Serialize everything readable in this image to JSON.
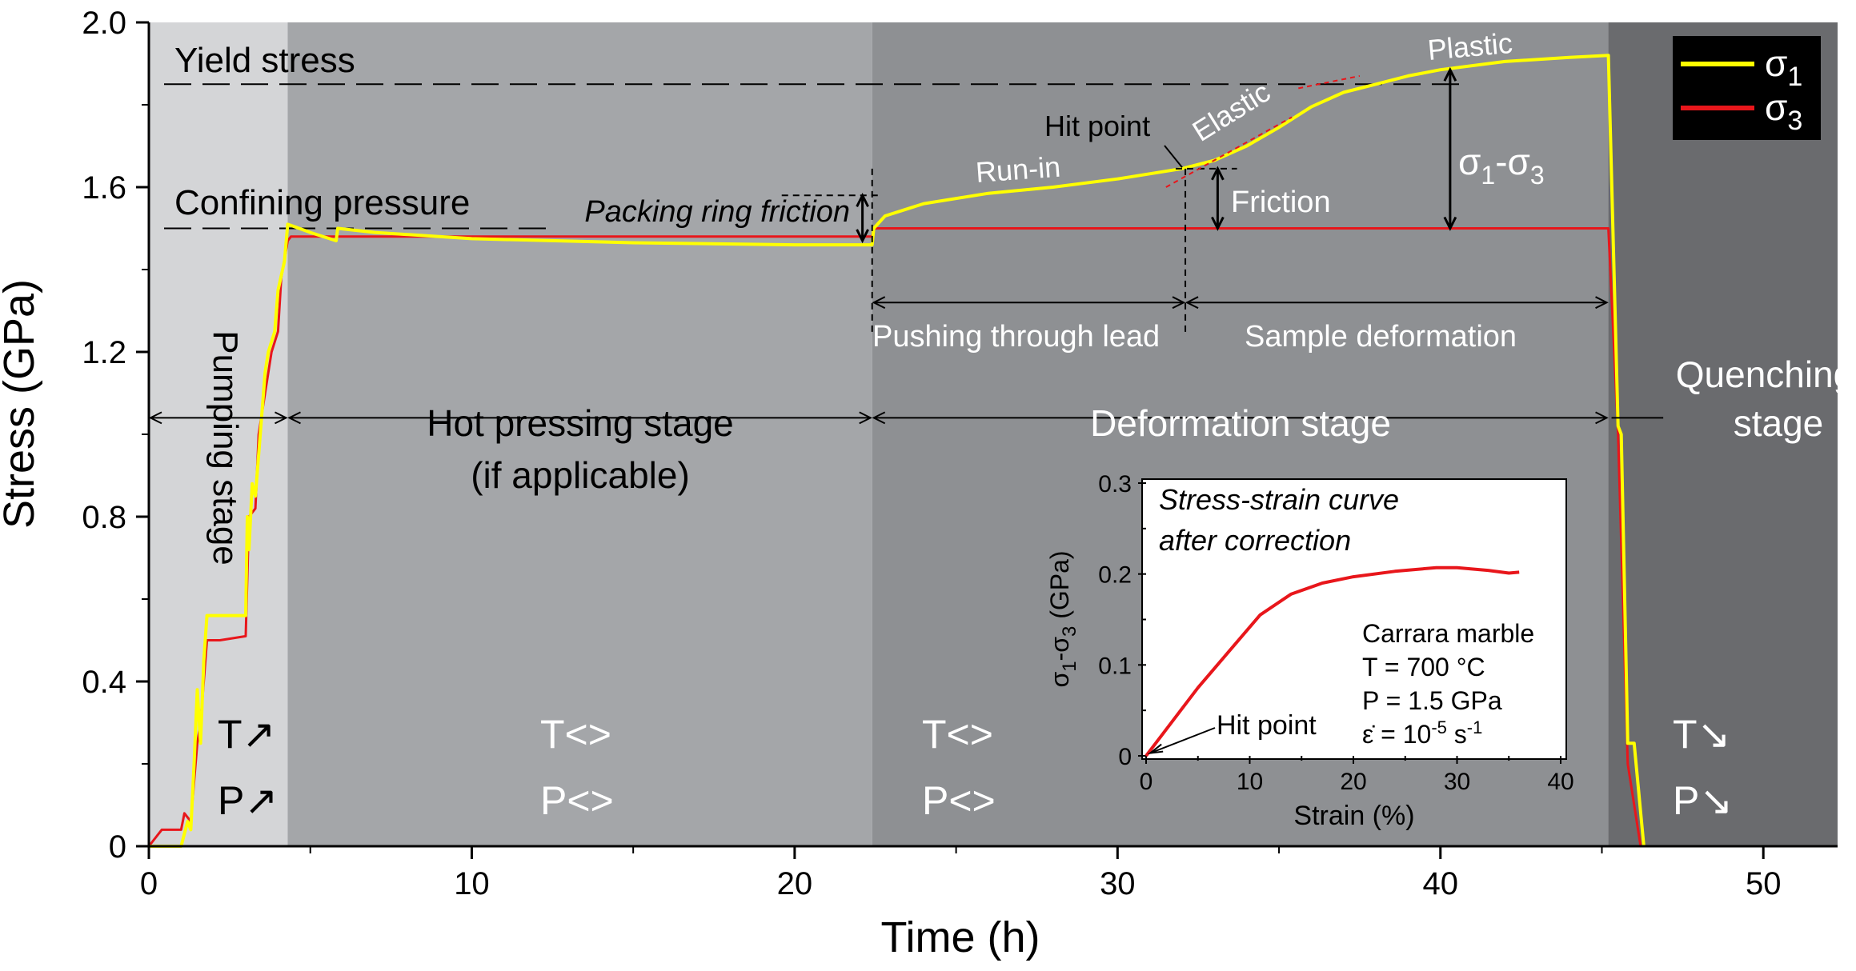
{
  "chart_data": [
    {
      "type": "line",
      "xlabel": "Time (h)",
      "ylabel": "Stress (GPa)",
      "xlim": [
        0,
        52.3
      ],
      "ylim": [
        0,
        2.0
      ],
      "x_ticks": [
        "0",
        "10",
        "20",
        "30",
        "40",
        "50"
      ],
      "y_ticks": [
        "0",
        "0.4",
        "0.8",
        "1.2",
        "1.6",
        "2.0"
      ],
      "legend": {
        "placement": "top-right",
        "entries": [
          {
            "name": "σ1",
            "base": "σ",
            "sub": "1",
            "color": "#ffff00"
          },
          {
            "name": "σ3",
            "base": "σ",
            "sub": "3",
            "color": "#e8161b"
          }
        ]
      },
      "stages": [
        {
          "name": "Pumping stage",
          "x_start": 0,
          "x_end": 4.3,
          "color": "#d4d5d7",
          "tp": [
            "T↗",
            "P↗"
          ]
        },
        {
          "name": "Hot pressing stage",
          "x_start": 4.3,
          "x_end": 22.4,
          "color": "#a4a6a9",
          "tp": [
            "T<>",
            "P<>"
          ]
        },
        {
          "name": "Deformation stage",
          "x_start": 22.4,
          "x_end": 45.2,
          "color": "#8e9093",
          "tp": [
            "T<>",
            "P<>"
          ]
        },
        {
          "name": "Quenching stage",
          "x_start": 45.2,
          "x_end": 52.3,
          "color": "#6a6b6e",
          "tp": [
            "T↘",
            "P↘"
          ]
        }
      ],
      "series": [
        {
          "name": "σ1",
          "color": "#ffff00",
          "points": [
            [
              0,
              0
            ],
            [
              1.0,
              0
            ],
            [
              1.2,
              0.06
            ],
            [
              1.3,
              0.04
            ],
            [
              1.4,
              0.2
            ],
            [
              1.5,
              0.38
            ],
            [
              1.6,
              0.25
            ],
            [
              1.7,
              0.45
            ],
            [
              1.8,
              0.56
            ],
            [
              2.2,
              0.56
            ],
            [
              3.0,
              0.56
            ],
            [
              3.05,
              0.8
            ],
            [
              3.1,
              0.72
            ],
            [
              3.2,
              0.88
            ],
            [
              3.3,
              0.85
            ],
            [
              3.5,
              1.05
            ],
            [
              3.6,
              1.15
            ],
            [
              3.7,
              1.2
            ],
            [
              3.9,
              1.25
            ],
            [
              4.0,
              1.35
            ],
            [
              4.2,
              1.42
            ],
            [
              4.3,
              1.51
            ],
            [
              5.0,
              1.49
            ],
            [
              5.8,
              1.47
            ],
            [
              5.85,
              1.5
            ],
            [
              7,
              1.49
            ],
            [
              10,
              1.475
            ],
            [
              15,
              1.465
            ],
            [
              20,
              1.46
            ],
            [
              22.4,
              1.46
            ],
            [
              22.45,
              1.5
            ],
            [
              22.8,
              1.53
            ],
            [
              24,
              1.56
            ],
            [
              26,
              1.585
            ],
            [
              28,
              1.6
            ],
            [
              30,
              1.62
            ],
            [
              32,
              1.645
            ],
            [
              33,
              1.665
            ],
            [
              34,
              1.7
            ],
            [
              35,
              1.745
            ],
            [
              36,
              1.795
            ],
            [
              37,
              1.83
            ],
            [
              38,
              1.85
            ],
            [
              39,
              1.87
            ],
            [
              40,
              1.885
            ],
            [
              42,
              1.905
            ],
            [
              44,
              1.915
            ],
            [
              45.2,
              1.92
            ],
            [
              45.5,
              1.02
            ],
            [
              45.6,
              1.0
            ],
            [
              45.8,
              0.25
            ],
            [
              46.0,
              0.25
            ],
            [
              46.3,
              0.0
            ]
          ]
        },
        {
          "name": "σ3",
          "color": "#e8161b",
          "points": [
            [
              0,
              0
            ],
            [
              0.4,
              0.04
            ],
            [
              1.0,
              0.04
            ],
            [
              1.1,
              0.08
            ],
            [
              1.3,
              0.06
            ],
            [
              1.5,
              0.25
            ],
            [
              1.6,
              0.3
            ],
            [
              1.8,
              0.5
            ],
            [
              2.2,
              0.5
            ],
            [
              3.0,
              0.51
            ],
            [
              3.1,
              0.8
            ],
            [
              3.3,
              0.82
            ],
            [
              3.4,
              1.0
            ],
            [
              3.6,
              1.1
            ],
            [
              3.8,
              1.2
            ],
            [
              4.0,
              1.25
            ],
            [
              4.1,
              1.38
            ],
            [
              4.3,
              1.47
            ],
            [
              4.4,
              1.48
            ],
            [
              10,
              1.48
            ],
            [
              20,
              1.48
            ],
            [
              22.4,
              1.48
            ],
            [
              22.45,
              1.5
            ],
            [
              45.2,
              1.5
            ],
            [
              45.5,
              1.0
            ],
            [
              45.8,
              0.2
            ],
            [
              46.2,
              0.0
            ]
          ]
        }
      ],
      "annotations": {
        "yield_stress": {
          "text": "Yield stress",
          "y": 1.85
        },
        "confining_pressure": {
          "text": "Confining pressure",
          "y": 1.5
        },
        "packing_ring_friction": "Packing ring friction",
        "run_in": "Run-in",
        "hit_point": "Hit point",
        "elastic": "Elastic",
        "plastic": "Plastic",
        "friction": "Friction",
        "sigma_diff": {
          "base": "σ",
          "sub1": "1",
          "mid": "-σ",
          "sub2": "3"
        },
        "pushing_through_lead": "Pushing through lead",
        "sample_deformation": "Sample deformation",
        "hot_pressing_line2": "(if applicable)",
        "quenching_line1": "Quenching",
        "quenching_line2": "stage"
      }
    },
    {
      "type": "line",
      "title_lines": [
        "Stress-strain curve",
        "after correction"
      ],
      "xlabel": "Strain (%)",
      "ylabel": {
        "base": "σ",
        "sub1": "1",
        "mid": "-σ",
        "sub2": "3",
        "unit": " (GPa)"
      },
      "xlim": [
        0,
        40
      ],
      "ylim": [
        0,
        0.3
      ],
      "x_ticks": [
        "0",
        "10",
        "20",
        "30",
        "40"
      ],
      "y_ticks": [
        "0",
        "0.1",
        "0.2",
        "0.3"
      ],
      "series": [
        {
          "name": "",
          "color": "#e8161b",
          "points": [
            [
              0,
              0
            ],
            [
              2,
              0.03
            ],
            [
              5,
              0.075
            ],
            [
              8,
              0.115
            ],
            [
              11,
              0.155
            ],
            [
              14,
              0.178
            ],
            [
              17,
              0.19
            ],
            [
              20,
              0.197
            ],
            [
              24,
              0.203
            ],
            [
              28,
              0.207
            ],
            [
              30,
              0.207
            ],
            [
              33,
              0.204
            ],
            [
              35,
              0.201
            ],
            [
              36,
              0.202
            ]
          ]
        }
      ],
      "hit_point_label": "Hit point",
      "conditions": {
        "material": "Carrara marble",
        "temperature": "T = 700 °C",
        "pressure": "P = 1.5 GPa",
        "rate_base": "ε̇ = 10",
        "rate_exp": "-5",
        "rate_unit": " s",
        "rate_unit_exp": "-1"
      }
    }
  ]
}
